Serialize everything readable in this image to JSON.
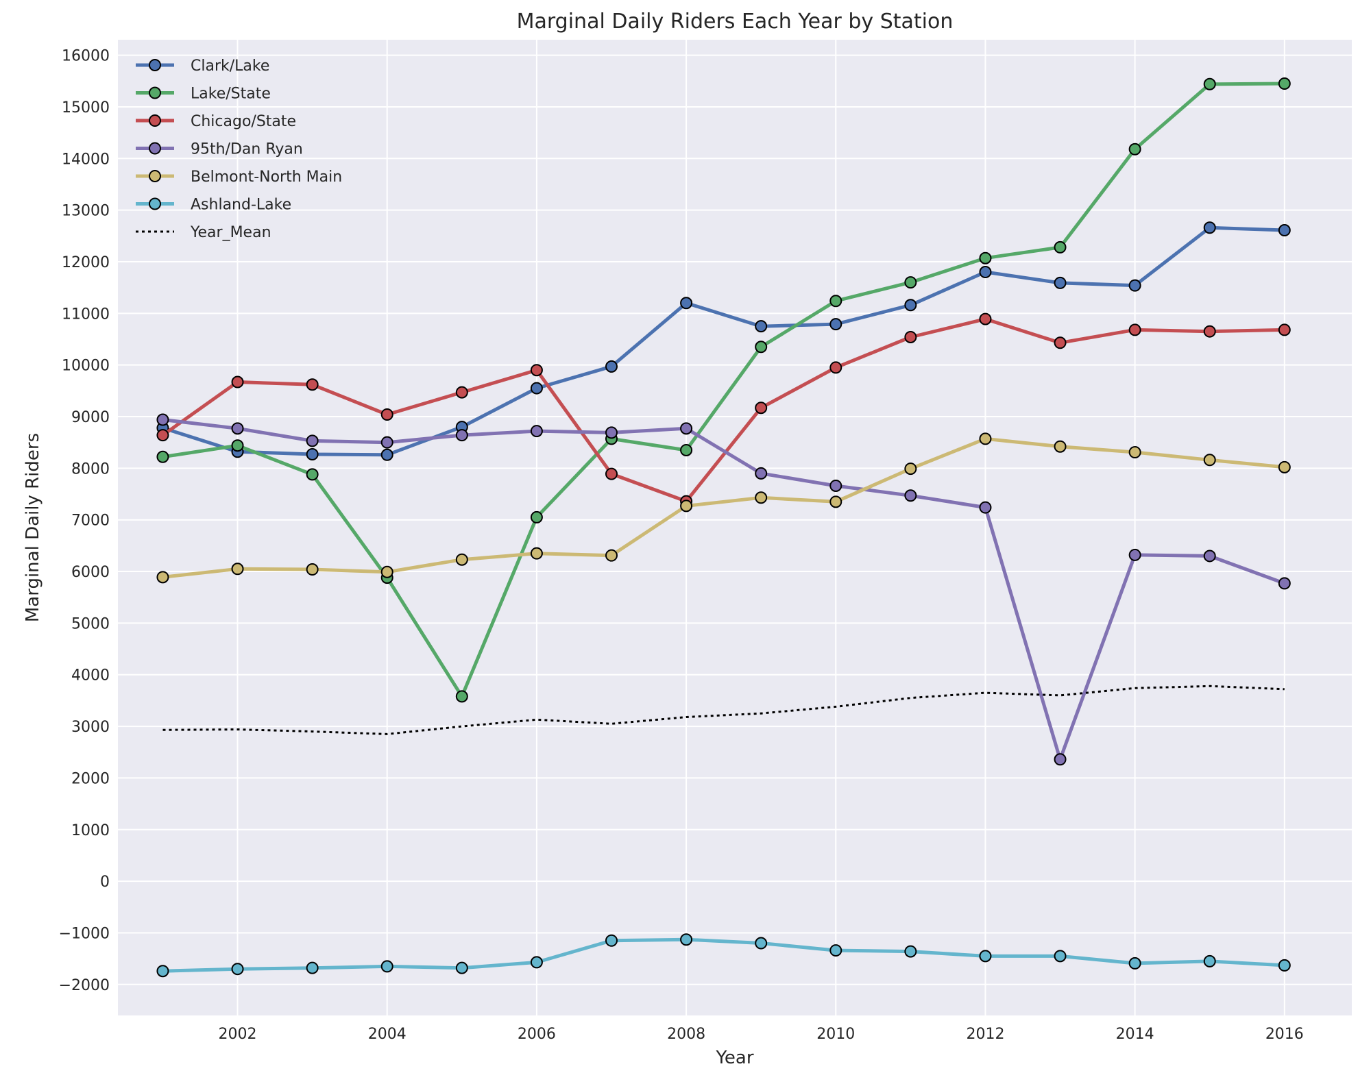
{
  "chart_data": {
    "type": "line",
    "title": "Marginal Daily Riders Each Year by Station",
    "xlabel": "Year",
    "ylabel": "Marginal Daily Riders",
    "x": [
      2001,
      2002,
      2003,
      2004,
      2005,
      2006,
      2007,
      2008,
      2009,
      2010,
      2011,
      2012,
      2013,
      2014,
      2015,
      2016
    ],
    "xlim": [
      2000.4,
      2016.9
    ],
    "ylim": [
      -2600,
      16300
    ],
    "xticks": [
      2002,
      2004,
      2006,
      2008,
      2010,
      2012,
      2014,
      2016
    ],
    "yticks": [
      -2000,
      -1000,
      0,
      1000,
      2000,
      3000,
      4000,
      5000,
      6000,
      7000,
      8000,
      9000,
      10000,
      11000,
      12000,
      13000,
      14000,
      15000,
      16000
    ],
    "yticklabels": [
      "−2000",
      "−1000",
      "0",
      "1000",
      "2000",
      "3000",
      "4000",
      "5000",
      "6000",
      "7000",
      "8000",
      "9000",
      "10000",
      "11000",
      "12000",
      "13000",
      "14000",
      "15000",
      "16000"
    ],
    "grid": true,
    "legend_position": "top-left",
    "series": [
      {
        "name": "Clark/Lake",
        "color": "#4C72B0",
        "marker": true,
        "values": [
          8780,
          8320,
          8270,
          8260,
          8800,
          9550,
          9970,
          11200,
          10750,
          10790,
          11160,
          11800,
          11590,
          11540,
          12660,
          12610
        ]
      },
      {
        "name": "Lake/State",
        "color": "#55A868",
        "marker": true,
        "values": [
          8220,
          8440,
          7880,
          5880,
          3580,
          7050,
          8570,
          8350,
          10350,
          11240,
          11600,
          12070,
          12280,
          14180,
          15440,
          15450
        ]
      },
      {
        "name": "Chicago/State",
        "color": "#C44E52",
        "marker": true,
        "values": [
          8640,
          9670,
          9620,
          9040,
          9470,
          9900,
          7890,
          7360,
          9170,
          9950,
          10540,
          10890,
          10430,
          10680,
          10650,
          10680
        ]
      },
      {
        "name": "95th/Dan Ryan",
        "color": "#8172B2",
        "marker": true,
        "values": [
          8940,
          8770,
          8530,
          8500,
          8640,
          8720,
          8690,
          8770,
          7900,
          7660,
          7470,
          7240,
          2360,
          6320,
          6300,
          5770
        ]
      },
      {
        "name": "Belmont-North Main",
        "color": "#CCB974",
        "marker": true,
        "values": [
          5890,
          6050,
          6040,
          5990,
          6230,
          6350,
          6310,
          7270,
          7430,
          7350,
          7990,
          8570,
          8420,
          8310,
          8160,
          8020
        ]
      },
      {
        "name": "Ashland-Lake",
        "color": "#64B5CD",
        "marker": true,
        "values": [
          -1740,
          -1700,
          -1680,
          -1650,
          -1680,
          -1570,
          -1150,
          -1130,
          -1200,
          -1340,
          -1360,
          -1450,
          -1450,
          -1590,
          -1550,
          -1630
        ]
      },
      {
        "name": "Year_Mean",
        "color": "#000000",
        "marker": false,
        "dashed": true,
        "values": [
          2930,
          2940,
          2900,
          2850,
          3000,
          3130,
          3050,
          3180,
          3250,
          3380,
          3550,
          3650,
          3600,
          3740,
          3780,
          3720
        ]
      }
    ]
  }
}
